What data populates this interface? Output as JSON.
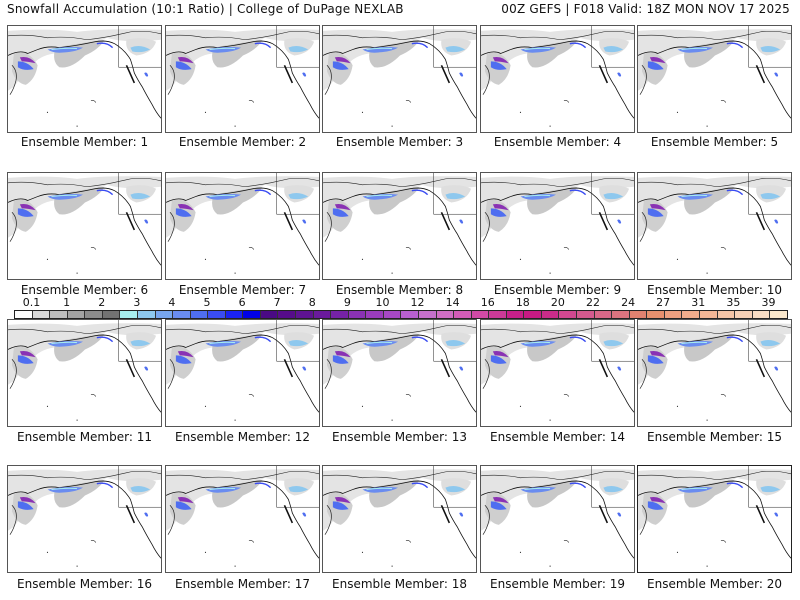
{
  "header": {
    "title_left": "Snowfall Accumulation (10:1 Ratio) | College of DuPage NEXLAB",
    "title_right": "00Z GEFS | F018 Valid: 18Z MON NOV 17 2025"
  },
  "panel_label_prefix": "Ensemble Member:",
  "members": [
    {
      "id": 1,
      "label": "Ensemble Member: 1"
    },
    {
      "id": 2,
      "label": "Ensemble Member: 2"
    },
    {
      "id": 3,
      "label": "Ensemble Member: 3"
    },
    {
      "id": 4,
      "label": "Ensemble Member: 4"
    },
    {
      "id": 5,
      "label": "Ensemble Member: 5"
    },
    {
      "id": 6,
      "label": "Ensemble Member: 6"
    },
    {
      "id": 7,
      "label": "Ensemble Member: 7"
    },
    {
      "id": 8,
      "label": "Ensemble Member: 8"
    },
    {
      "id": 9,
      "label": "Ensemble Member: 9"
    },
    {
      "id": 10,
      "label": "Ensemble Member: 10"
    },
    {
      "id": 11,
      "label": "Ensemble Member: 11"
    },
    {
      "id": 12,
      "label": "Ensemble Member: 12"
    },
    {
      "id": 13,
      "label": "Ensemble Member: 13"
    },
    {
      "id": 14,
      "label": "Ensemble Member: 14"
    },
    {
      "id": 15,
      "label": "Ensemble Member: 15"
    },
    {
      "id": 16,
      "label": "Ensemble Member: 16"
    },
    {
      "id": 17,
      "label": "Ensemble Member: 17"
    },
    {
      "id": 18,
      "label": "Ensemble Member: 18"
    },
    {
      "id": 19,
      "label": "Ensemble Member: 19"
    },
    {
      "id": 20,
      "label": "Ensemble Member: 20",
      "selected": true
    }
  ],
  "colorbar": {
    "labels": [
      "0.1",
      "1",
      "2",
      "3",
      "4",
      "5",
      "6",
      "7",
      "8",
      "9",
      "10",
      "12",
      "14",
      "16",
      "18",
      "20",
      "22",
      "24",
      "27",
      "31",
      "35",
      "39"
    ],
    "colors": [
      "#ffffff",
      "#d9d9d9",
      "#bdbdbd",
      "#a3a3a3",
      "#8c8c8c",
      "#737373",
      "#a8eeee",
      "#8ec8ee",
      "#78a6ee",
      "#6a8cf0",
      "#4f6ef0",
      "#3a4cf2",
      "#1a22f2",
      "#0000e8",
      "#4a0a84",
      "#560c8a",
      "#5e1392",
      "#6a1a9c",
      "#7622a6",
      "#8a32b4",
      "#9a3cbc",
      "#a648c4",
      "#b860d0",
      "#c670cc",
      "#d06ec4",
      "#d45cb8",
      "#d24aa6",
      "#cc3a98",
      "#c8208a",
      "#c81a84",
      "#ca2c8a",
      "#d24890",
      "#d45a8e",
      "#d86888",
      "#dc7480",
      "#e28270",
      "#e8906e",
      "#eea080",
      "#f0ac8c",
      "#f2b696",
      "#f4c4a6",
      "#f6d0b6",
      "#f8dcc4",
      "#fbe8cc"
    ]
  }
}
